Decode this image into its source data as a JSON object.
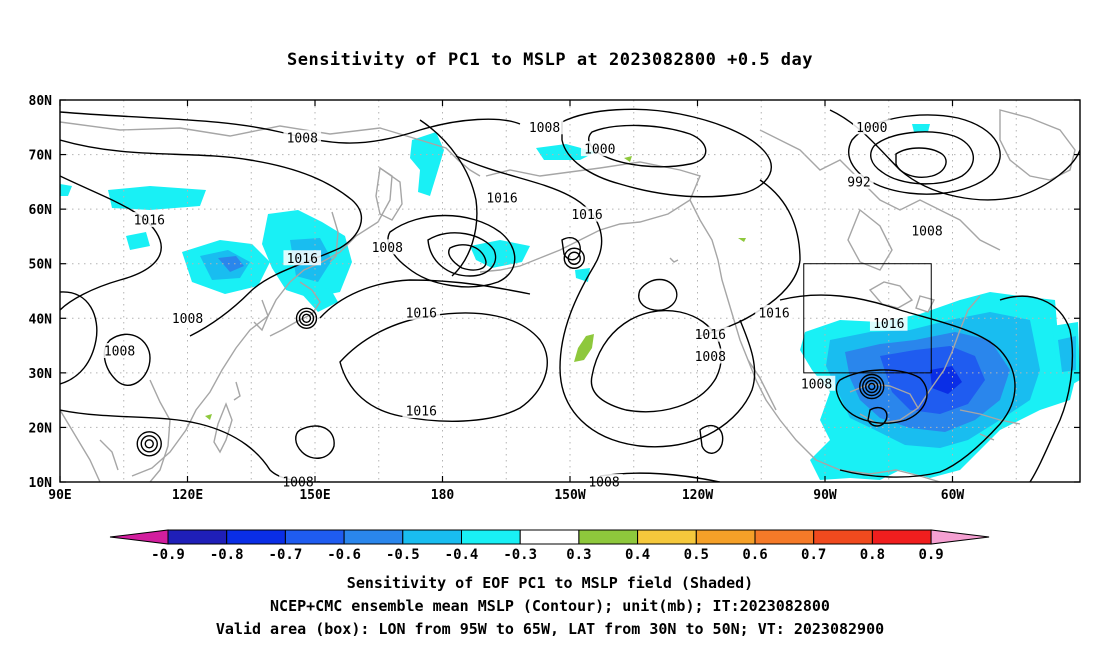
{
  "title": "Sensitivity of PC1 to MSLP at 2023082800 +0.5 day",
  "colors": {
    "contour": "#000000",
    "coast": "#a6a6a6",
    "grid": "#b4b4b4",
    "neg_levels": [
      "#1f1fb8",
      "#0a2ee6",
      "#1f5cf0",
      "#2a86ec",
      "#19bdf0",
      "#19f0f5"
    ],
    "pos_levels": [
      "#8ec83c",
      "#f5c83c",
      "#f5a028",
      "#f57a28",
      "#f04a1e",
      "#f01e1e"
    ],
    "below_min": "#d21e9e",
    "above_max": "#f5a0d2"
  },
  "map": {
    "lat_labels": [
      "80N",
      "70N",
      "60N",
      "50N",
      "40N",
      "30N",
      "20N",
      "10N"
    ],
    "lon_labels": [
      "90E",
      "120E",
      "150E",
      "180",
      "150W",
      "120W",
      "90W",
      "60W"
    ],
    "valid_box": {
      "lon_west": -95,
      "lon_east": -65,
      "lat_south": 30,
      "lat_north": 50
    },
    "contour_labels": [
      {
        "text": "1008",
        "lon": 147,
        "lat": 73
      },
      {
        "text": "1016",
        "lon": 111,
        "lat": 58
      },
      {
        "text": "1016",
        "lon": 147,
        "lat": 51
      },
      {
        "text": "1008",
        "lon": 167,
        "lat": 53
      },
      {
        "text": "1016",
        "lon": 175,
        "lat": 41
      },
      {
        "text": "1008",
        "lon": 120,
        "lat": 40
      },
      {
        "text": "1008",
        "lon": 104,
        "lat": 34
      },
      {
        "text": "1016",
        "lon": 175,
        "lat": 23
      },
      {
        "text": "1008",
        "lon": 146,
        "lat": 10
      },
      {
        "text": "1008",
        "lon": -156,
        "lat": 75
      },
      {
        "text": "1000",
        "lon": -143,
        "lat": 71
      },
      {
        "text": "1016",
        "lon": -166,
        "lat": 62
      },
      {
        "text": "1016",
        "lon": -146,
        "lat": 59
      },
      {
        "text": "1016",
        "lon": -117,
        "lat": 37
      },
      {
        "text": "1008",
        "lon": -117,
        "lat": 33
      },
      {
        "text": "1016",
        "lon": -102,
        "lat": 41
      },
      {
        "text": "1016",
        "lon": -75,
        "lat": 39
      },
      {
        "text": "1008",
        "lon": -92,
        "lat": 28
      },
      {
        "text": "1008",
        "lon": -142,
        "lat": 10
      },
      {
        "text": "1000",
        "lon": -79,
        "lat": 75
      },
      {
        "text": "992",
        "lon": -82,
        "lat": 65
      },
      {
        "text": "1008",
        "lon": -66,
        "lat": 56
      }
    ]
  },
  "colorbar": {
    "labels": [
      "-0.9",
      "-0.8",
      "-0.7",
      "-0.6",
      "-0.5",
      "-0.4",
      "-0.3",
      "0.3",
      "0.4",
      "0.5",
      "0.6",
      "0.7",
      "0.8",
      "0.9"
    ]
  },
  "footer": {
    "line1": "Sensitivity of EOF PC1 to MSLP field (Shaded)",
    "line2": "NCEP+CMC ensemble mean MSLP (Contour); unit(mb); IT:2023082800",
    "line3": "Valid area (box): LON from 95W to 65W, LAT from 30N to 50N; VT: 2023082900"
  }
}
